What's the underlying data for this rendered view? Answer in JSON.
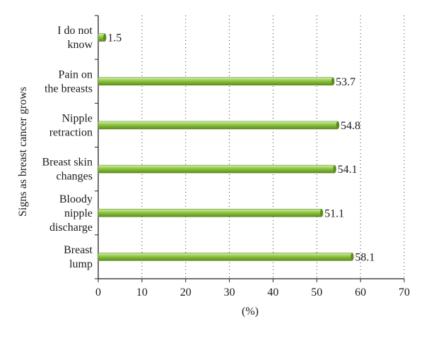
{
  "chart_data": {
    "type": "bar",
    "orientation": "horizontal",
    "title": "",
    "xlabel": "(%)",
    "ylabel": "Signs as breast cancer grows",
    "xlim": [
      0,
      70
    ],
    "xticks": [
      0,
      10,
      20,
      30,
      40,
      50,
      60,
      70
    ],
    "grid": "vertical-dotted",
    "legend": "none",
    "categories": [
      [
        "I do not",
        "know"
      ],
      [
        "Pain on",
        "the breasts"
      ],
      [
        "Nipple",
        "retraction"
      ],
      [
        "Breast skin",
        "changes"
      ],
      [
        "Bloody",
        "nipple",
        "discharge"
      ],
      [
        "Breast",
        "lump"
      ]
    ],
    "values": [
      1.5,
      53.7,
      54.8,
      54.1,
      51.1,
      58.1
    ],
    "value_labels": [
      "1.5",
      "53.7",
      "54.8",
      "54.1",
      "51.1",
      "58.1"
    ],
    "bar_color": "#8dc63f",
    "bar_highlight": "#d6eeb0",
    "bar_shadow": "#5e8c22"
  }
}
